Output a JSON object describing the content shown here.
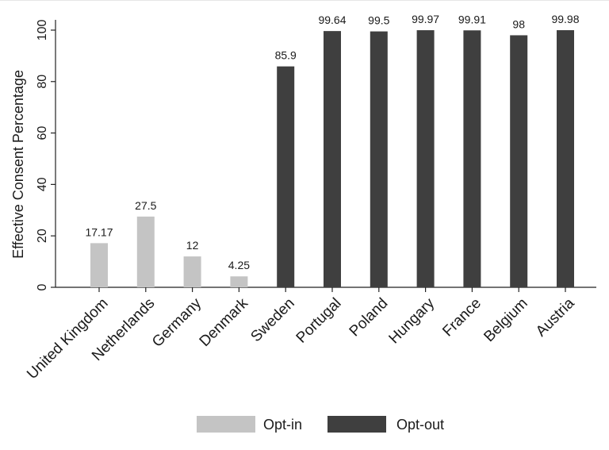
{
  "chart_data": {
    "type": "bar",
    "title": "",
    "xlabel": "",
    "ylabel": "Effective Consent Percentage",
    "ylim": [
      0,
      104
    ],
    "yticks": [
      0,
      20,
      40,
      60,
      80,
      100
    ],
    "categories": [
      "United Kingdom",
      "Netherlands",
      "Germany",
      "Denmark",
      "Sweden",
      "Portugal",
      "Poland",
      "Hungary",
      "France",
      "Belgium",
      "Austria"
    ],
    "values": [
      17.17,
      27.5,
      12,
      4.25,
      85.9,
      99.64,
      99.5,
      99.97,
      99.91,
      98,
      99.98
    ],
    "value_labels": [
      "17.17",
      "27.5",
      "12",
      "4.25",
      "85.9",
      "99.64",
      "99.5",
      "99.97",
      "99.91",
      "98",
      "99.98"
    ],
    "group": [
      "Opt-in",
      "Opt-in",
      "Opt-in",
      "Opt-in",
      "Opt-out",
      "Opt-out",
      "Opt-out",
      "Opt-out",
      "Opt-out",
      "Opt-out",
      "Opt-out"
    ],
    "legend": [
      {
        "name": "Opt-in",
        "color": "#c4c4c4"
      },
      {
        "name": "Opt-out",
        "color": "#3f3f3f"
      }
    ],
    "legend_position": "bottom-center",
    "grid": false
  }
}
